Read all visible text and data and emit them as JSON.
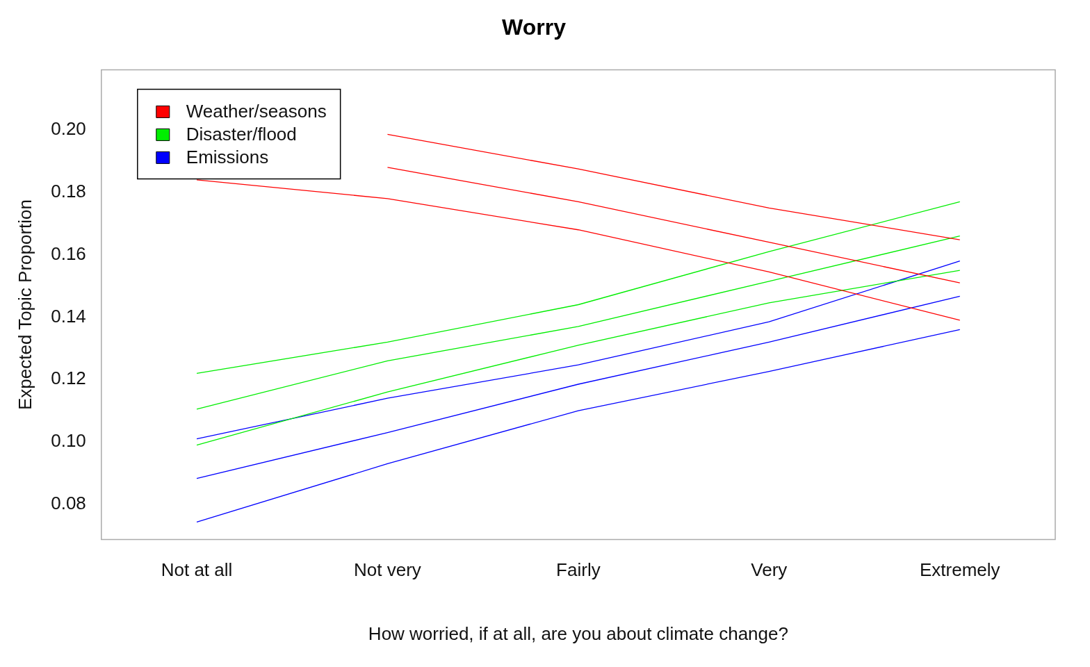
{
  "chart_data": {
    "type": "line",
    "title": "Worry",
    "xlabel": "How worried, if at all, are you about climate change?",
    "ylabel": "Expected Topic Proportion",
    "categories": [
      "Not at all",
      "Not very",
      "Fairly",
      "Very",
      "Extremely"
    ],
    "ylim": [
      0.0687,
      0.2193
    ],
    "yticks": [
      {
        "value": 0.08,
        "label": "0.08"
      },
      {
        "value": 0.1,
        "label": "0.10"
      },
      {
        "value": 0.12,
        "label": "0.12"
      },
      {
        "value": 0.14,
        "label": "0.14"
      },
      {
        "value": 0.16,
        "label": "0.16"
      },
      {
        "value": 0.18,
        "label": "0.18"
      },
      {
        "value": 0.2,
        "label": "0.20"
      }
    ],
    "grid": false,
    "legend": "top left",
    "marker": "none",
    "line_style": "solid",
    "series": [
      {
        "color": "#ff0000",
        "values": [
          null,
          0.1986,
          0.1875,
          0.175,
          0.1648
        ]
      },
      {
        "name": "Weather/seasons",
        "color": "#ff0000",
        "values": [
          null,
          0.188,
          0.177,
          0.164,
          0.151
        ]
      },
      {
        "color": "#ff0000",
        "values": [
          0.184,
          0.178,
          0.168,
          0.1545,
          0.139
        ]
      },
      {
        "color": "#00ee00",
        "values": [
          0.122,
          0.132,
          0.144,
          0.161,
          0.177
        ]
      },
      {
        "name": "Disaster/flood",
        "color": "#00ee00",
        "values": [
          0.1105,
          0.126,
          0.137,
          0.1515,
          0.166
        ]
      },
      {
        "color": "#00ee00",
        "values": [
          0.099,
          0.116,
          0.131,
          0.1446,
          0.155
        ]
      },
      {
        "color": "#0000ff",
        "values": [
          0.101,
          0.114,
          0.1247,
          0.1385,
          0.158
        ]
      },
      {
        "name": "Emissions",
        "color": "#0000ff",
        "values": [
          0.0883,
          0.103,
          0.1185,
          0.132,
          0.1467
        ]
      },
      {
        "color": "#0000ff",
        "values": [
          0.0743,
          0.093,
          0.11,
          0.1226,
          0.136
        ]
      }
    ]
  }
}
